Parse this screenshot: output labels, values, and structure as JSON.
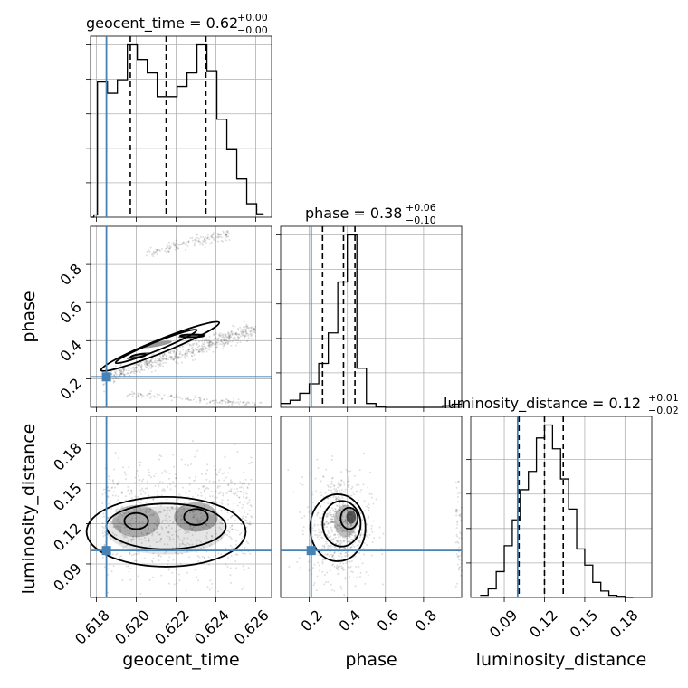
{
  "chart_data": {
    "type": "corner",
    "parameters": [
      {
        "name": "geocent_time",
        "range": [
          0.6177,
          0.6268
        ],
        "ticks": [
          0.618,
          0.62,
          0.622,
          0.624,
          0.626
        ],
        "tick_labels": [
          "0.618",
          "0.620",
          "0.622",
          "0.624",
          "0.626"
        ],
        "title": {
          "main": "geocent_time = 0.62",
          "sup": "+0.00",
          "sub": "−0.00"
        },
        "quantiles": [
          0.6197,
          0.6215,
          0.6235
        ],
        "truth": 0.6185
      },
      {
        "name": "phase",
        "range": [
          0.05,
          1.0
        ],
        "ticks": [
          0.2,
          0.4,
          0.6,
          0.8
        ],
        "tick_labels": [
          "0.2",
          "0.4",
          "0.6",
          "0.8"
        ],
        "title": {
          "main": "phase = 0.38",
          "sup": "+0.06",
          "sub": "−0.10"
        },
        "quantiles": [
          0.27,
          0.38,
          0.44
        ],
        "truth": 0.21
      },
      {
        "name": "luminosity_distance",
        "range": [
          0.065,
          0.2
        ],
        "ticks": [
          0.09,
          0.12,
          0.15,
          0.18
        ],
        "tick_labels": [
          "0.09",
          "0.12",
          "0.15",
          "0.18"
        ],
        "title": {
          "main": "luminosity_distance = 0.12",
          "sup": "+0.01",
          "sub": "−0.02"
        },
        "quantiles": [
          0.101,
          0.12,
          0.134
        ],
        "truth": 0.1
      }
    ],
    "hist_geocent_time": {
      "edges": [
        0.6177,
        0.61787,
        0.61805,
        0.61855,
        0.61905,
        0.61955,
        0.62005,
        0.62055,
        0.62105,
        0.62155,
        0.62205,
        0.62255,
        0.62305,
        0.62355,
        0.62405,
        0.62455,
        0.62505,
        0.62555,
        0.62605,
        0.6264
      ],
      "values": [
        0,
        2,
        120,
        110,
        122,
        153,
        140,
        128,
        107,
        107,
        116,
        128,
        153,
        130,
        87,
        60,
        34,
        12,
        3
      ]
    },
    "hist_phase": {
      "edges": [
        0.05,
        0.1,
        0.15,
        0.2,
        0.25,
        0.3,
        0.35,
        0.4,
        0.45,
        0.5,
        0.55,
        0.6,
        0.65,
        0.7,
        0.75,
        0.8,
        0.85,
        0.9,
        0.95,
        1.0
      ],
      "values": [
        5,
        9,
        18,
        30,
        56,
        95,
        160,
        220,
        50,
        5,
        1,
        0,
        0,
        0,
        0,
        0,
        0,
        2,
        4
      ]
    },
    "hist_luminosity_distance": {
      "edges": [
        0.072,
        0.078,
        0.084,
        0.09,
        0.096,
        0.102,
        0.108,
        0.114,
        0.12,
        0.126,
        0.132,
        0.138,
        0.144,
        0.15,
        0.156,
        0.162,
        0.168,
        0.174,
        0.18,
        0.186
      ],
      "values": [
        2,
        8,
        24,
        48,
        72,
        100,
        117,
        148,
        160,
        138,
        110,
        82,
        45,
        30,
        14,
        6,
        2,
        1,
        0
      ]
    }
  }
}
